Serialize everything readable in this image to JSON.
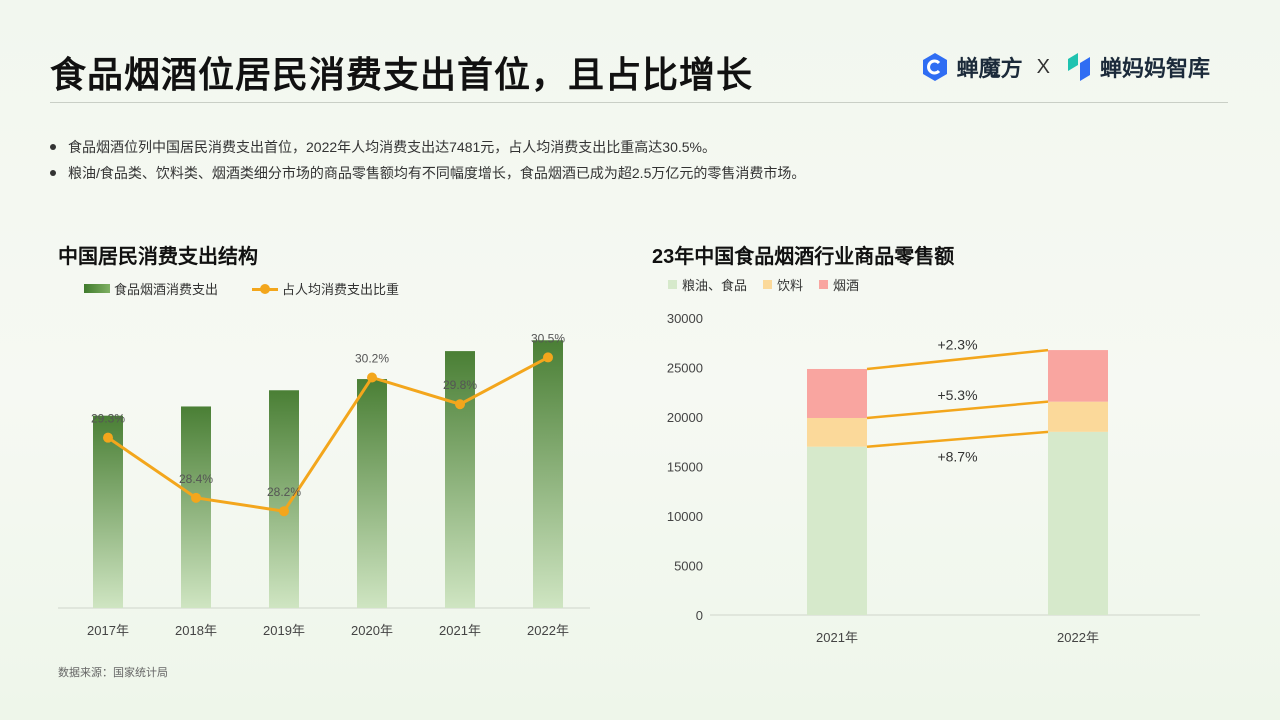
{
  "page": {
    "title": "食品烟酒位居民消费支出首位，且占比增长",
    "logo_left": "蝉魔方",
    "logo_sep": "X",
    "logo_right": "蝉妈妈智库",
    "bullets": [
      "食品烟酒位列中国居民消费支出首位，2022年人均消费支出达7481元，占人均消费支出比重高达30.5%。",
      "粮油/食品类、饮料类、烟酒类细分市场的商品零售额均有不同幅度增长，食品烟酒已成为超2.5万亿元的零售消费市场。"
    ],
    "source": "数据来源：国家统计局",
    "colors": {
      "accent_orange": "#f3a61c",
      "bar_green_dark": "#4a7f35",
      "bar_green_light": "#cfe5c2"
    }
  },
  "chart_data": [
    {
      "type": "bar",
      "title": "中国居民消费支出结构",
      "categories": [
        "2017年",
        "2018年",
        "2019年",
        "2020年",
        "2021年",
        "2022年"
      ],
      "series": [
        {
          "name": "食品烟酒消费支出",
          "values": [
            5374,
            5631,
            6084,
            6397,
            7178,
            7481
          ]
        },
        {
          "name": "占人均消费支出比重",
          "type": "line",
          "values": [
            29.3,
            28.4,
            28.2,
            30.2,
            29.8,
            30.5
          ],
          "labels": [
            "29.3%",
            "28.4%",
            "28.2%",
            "30.2%",
            "29.8%",
            "30.5%"
          ]
        }
      ],
      "legend": "top-left",
      "grid": false
    },
    {
      "type": "bar",
      "stacked": true,
      "title": "23年中国食品烟酒行业商品零售额",
      "categories": [
        "2021年",
        "2022年"
      ],
      "yticks": [
        "0",
        "5000",
        "10000",
        "15000",
        "20000",
        "25000",
        "30000"
      ],
      "ylim": [
        0,
        30000
      ],
      "series": [
        {
          "name": "粮油、食品",
          "color": "#d6e9cb",
          "values": [
            17000,
            18500
          ]
        },
        {
          "name": "饮料",
          "color": "#fbd99a",
          "values": [
            2900,
            3050
          ]
        },
        {
          "name": "烟酒",
          "color": "#f9a5a0",
          "values": [
            4950,
            5210
          ]
        }
      ],
      "growth_labels": [
        "+2.3%",
        "+5.3%",
        "+8.7%"
      ],
      "legend": "top-left",
      "grid": false
    }
  ]
}
